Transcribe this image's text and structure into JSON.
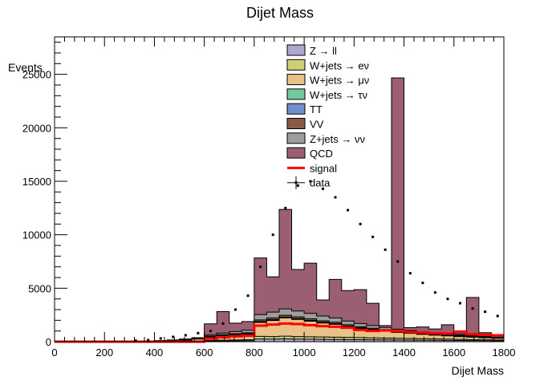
{
  "chart_data": {
    "type": "stacked_histogram",
    "title": "Dijet Mass",
    "xlabel": "Dijet Mass",
    "ylabel": "Events",
    "xlim": [
      0,
      1800
    ],
    "ylim": [
      0,
      28500
    ],
    "bin_width": 50,
    "x_ticks": [
      0,
      200,
      400,
      600,
      800,
      1000,
      1200,
      1400,
      1600,
      1800
    ],
    "y_ticks": [
      0,
      5000,
      10000,
      15000,
      20000,
      25000
    ],
    "x_tick_labels": [
      "0",
      "200",
      "400",
      "600",
      "800",
      "1000",
      "1200",
      "1400",
      "1600",
      "1800"
    ],
    "y_tick_labels": [
      "0",
      "5000",
      "10000",
      "15000",
      "20000",
      "25000"
    ],
    "legend_position": "top-center",
    "bin_edges_start": [
      0,
      50,
      100,
      150,
      200,
      250,
      300,
      350,
      400,
      450,
      500,
      550,
      600,
      650,
      700,
      750,
      800,
      850,
      900,
      950,
      1000,
      1050,
      1100,
      1150,
      1200,
      1250,
      1300,
      1350,
      1400,
      1450,
      1500,
      1550,
      1600,
      1650,
      1700,
      1750
    ],
    "stack_series": [
      {
        "name": "Z → ll",
        "color": "#aca7cc",
        "values": [
          0,
          0,
          0,
          0,
          0,
          0,
          0,
          0,
          0,
          0,
          0,
          0,
          60,
          70,
          80,
          90,
          250,
          240,
          260,
          240,
          230,
          220,
          210,
          200,
          190,
          180,
          170,
          160,
          150,
          140,
          130,
          120,
          110,
          100,
          90,
          80
        ]
      },
      {
        "name": "W+jets → eν",
        "color": "#cfcf7a",
        "values": [
          0,
          0,
          0,
          0,
          0,
          0,
          0,
          0,
          0,
          0,
          0,
          0,
          60,
          70,
          80,
          90,
          250,
          240,
          260,
          240,
          230,
          220,
          210,
          200,
          190,
          180,
          170,
          160,
          150,
          140,
          130,
          120,
          110,
          100,
          90,
          80
        ]
      },
      {
        "name": "W+jets → μν",
        "color": "#e8c288",
        "values": [
          0,
          0,
          0,
          0,
          0,
          0,
          20,
          40,
          60,
          100,
          150,
          250,
          300,
          400,
          450,
          500,
          1300,
          1500,
          1700,
          1600,
          1450,
          1300,
          1200,
          1000,
          850,
          750,
          650,
          550,
          480,
          400,
          350,
          300,
          260,
          220,
          190,
          160
        ]
      },
      {
        "name": "W+jets → τν",
        "color": "#72c9a0",
        "values": [
          0,
          0,
          0,
          0,
          0,
          0,
          0,
          0,
          0,
          0,
          0,
          0,
          20,
          25,
          30,
          30,
          40,
          40,
          40,
          40,
          40,
          35,
          35,
          30,
          30,
          25,
          25,
          20,
          20,
          20,
          15,
          15,
          15,
          10,
          10,
          10
        ]
      },
      {
        "name": "TT",
        "color": "#6f8fcf",
        "values": [
          0,
          0,
          0,
          0,
          0,
          0,
          0,
          0,
          0,
          0,
          0,
          0,
          20,
          25,
          30,
          30,
          40,
          40,
          40,
          40,
          40,
          35,
          35,
          30,
          30,
          25,
          25,
          20,
          20,
          20,
          15,
          15,
          15,
          10,
          10,
          10
        ]
      },
      {
        "name": "VV",
        "color": "#8b5a46",
        "values": [
          0,
          0,
          0,
          0,
          0,
          0,
          0,
          0,
          10,
          20,
          30,
          40,
          60,
          70,
          80,
          90,
          150,
          160,
          170,
          160,
          150,
          140,
          130,
          120,
          110,
          100,
          90,
          80,
          70,
          60,
          50,
          45,
          40,
          35,
          30,
          25
        ]
      },
      {
        "name": "Z+jets → νν",
        "color": "#9d9d9d",
        "values": [
          0,
          0,
          0,
          0,
          0,
          0,
          10,
          20,
          30,
          40,
          60,
          80,
          100,
          150,
          200,
          250,
          500,
          550,
          600,
          550,
          500,
          450,
          400,
          350,
          300,
          250,
          200,
          180,
          150,
          130,
          110,
          100,
          90,
          80,
          70,
          60
        ]
      },
      {
        "name": "QCD",
        "color": "#9a5f70",
        "values": [
          0,
          0,
          0,
          0,
          0,
          0,
          0,
          0,
          0,
          0,
          0,
          0,
          1050,
          2000,
          780,
          800,
          5300,
          3300,
          9300,
          3880,
          4700,
          1500,
          3600,
          2850,
          3170,
          2080,
          180,
          23500,
          270,
          470,
          390,
          870,
          130,
          3580,
          350,
          110
        ]
      }
    ],
    "signal": {
      "name": "signal",
      "color": "#ff0000",
      "values": [
        0,
        0,
        0,
        0,
        0,
        0,
        0,
        0,
        0,
        0,
        0,
        0,
        300,
        400,
        500,
        550,
        1500,
        1600,
        1700,
        1650,
        1550,
        1450,
        1400,
        1300,
        1100,
        1000,
        1050,
        1000,
        900,
        850,
        800,
        750,
        950,
        700,
        650,
        600
      ]
    },
    "data": {
      "name": "data",
      "color": "#000000",
      "values": [
        0,
        0,
        0,
        0,
        0,
        0,
        100,
        150,
        300,
        450,
        600,
        800,
        1000,
        1700,
        3000,
        4300,
        7000,
        10000,
        12500,
        14600,
        15000,
        14300,
        13500,
        12300,
        11000,
        9800,
        8600,
        7500,
        6400,
        5500,
        4600,
        4000,
        3600,
        3100,
        2800,
        2400
      ]
    }
  }
}
